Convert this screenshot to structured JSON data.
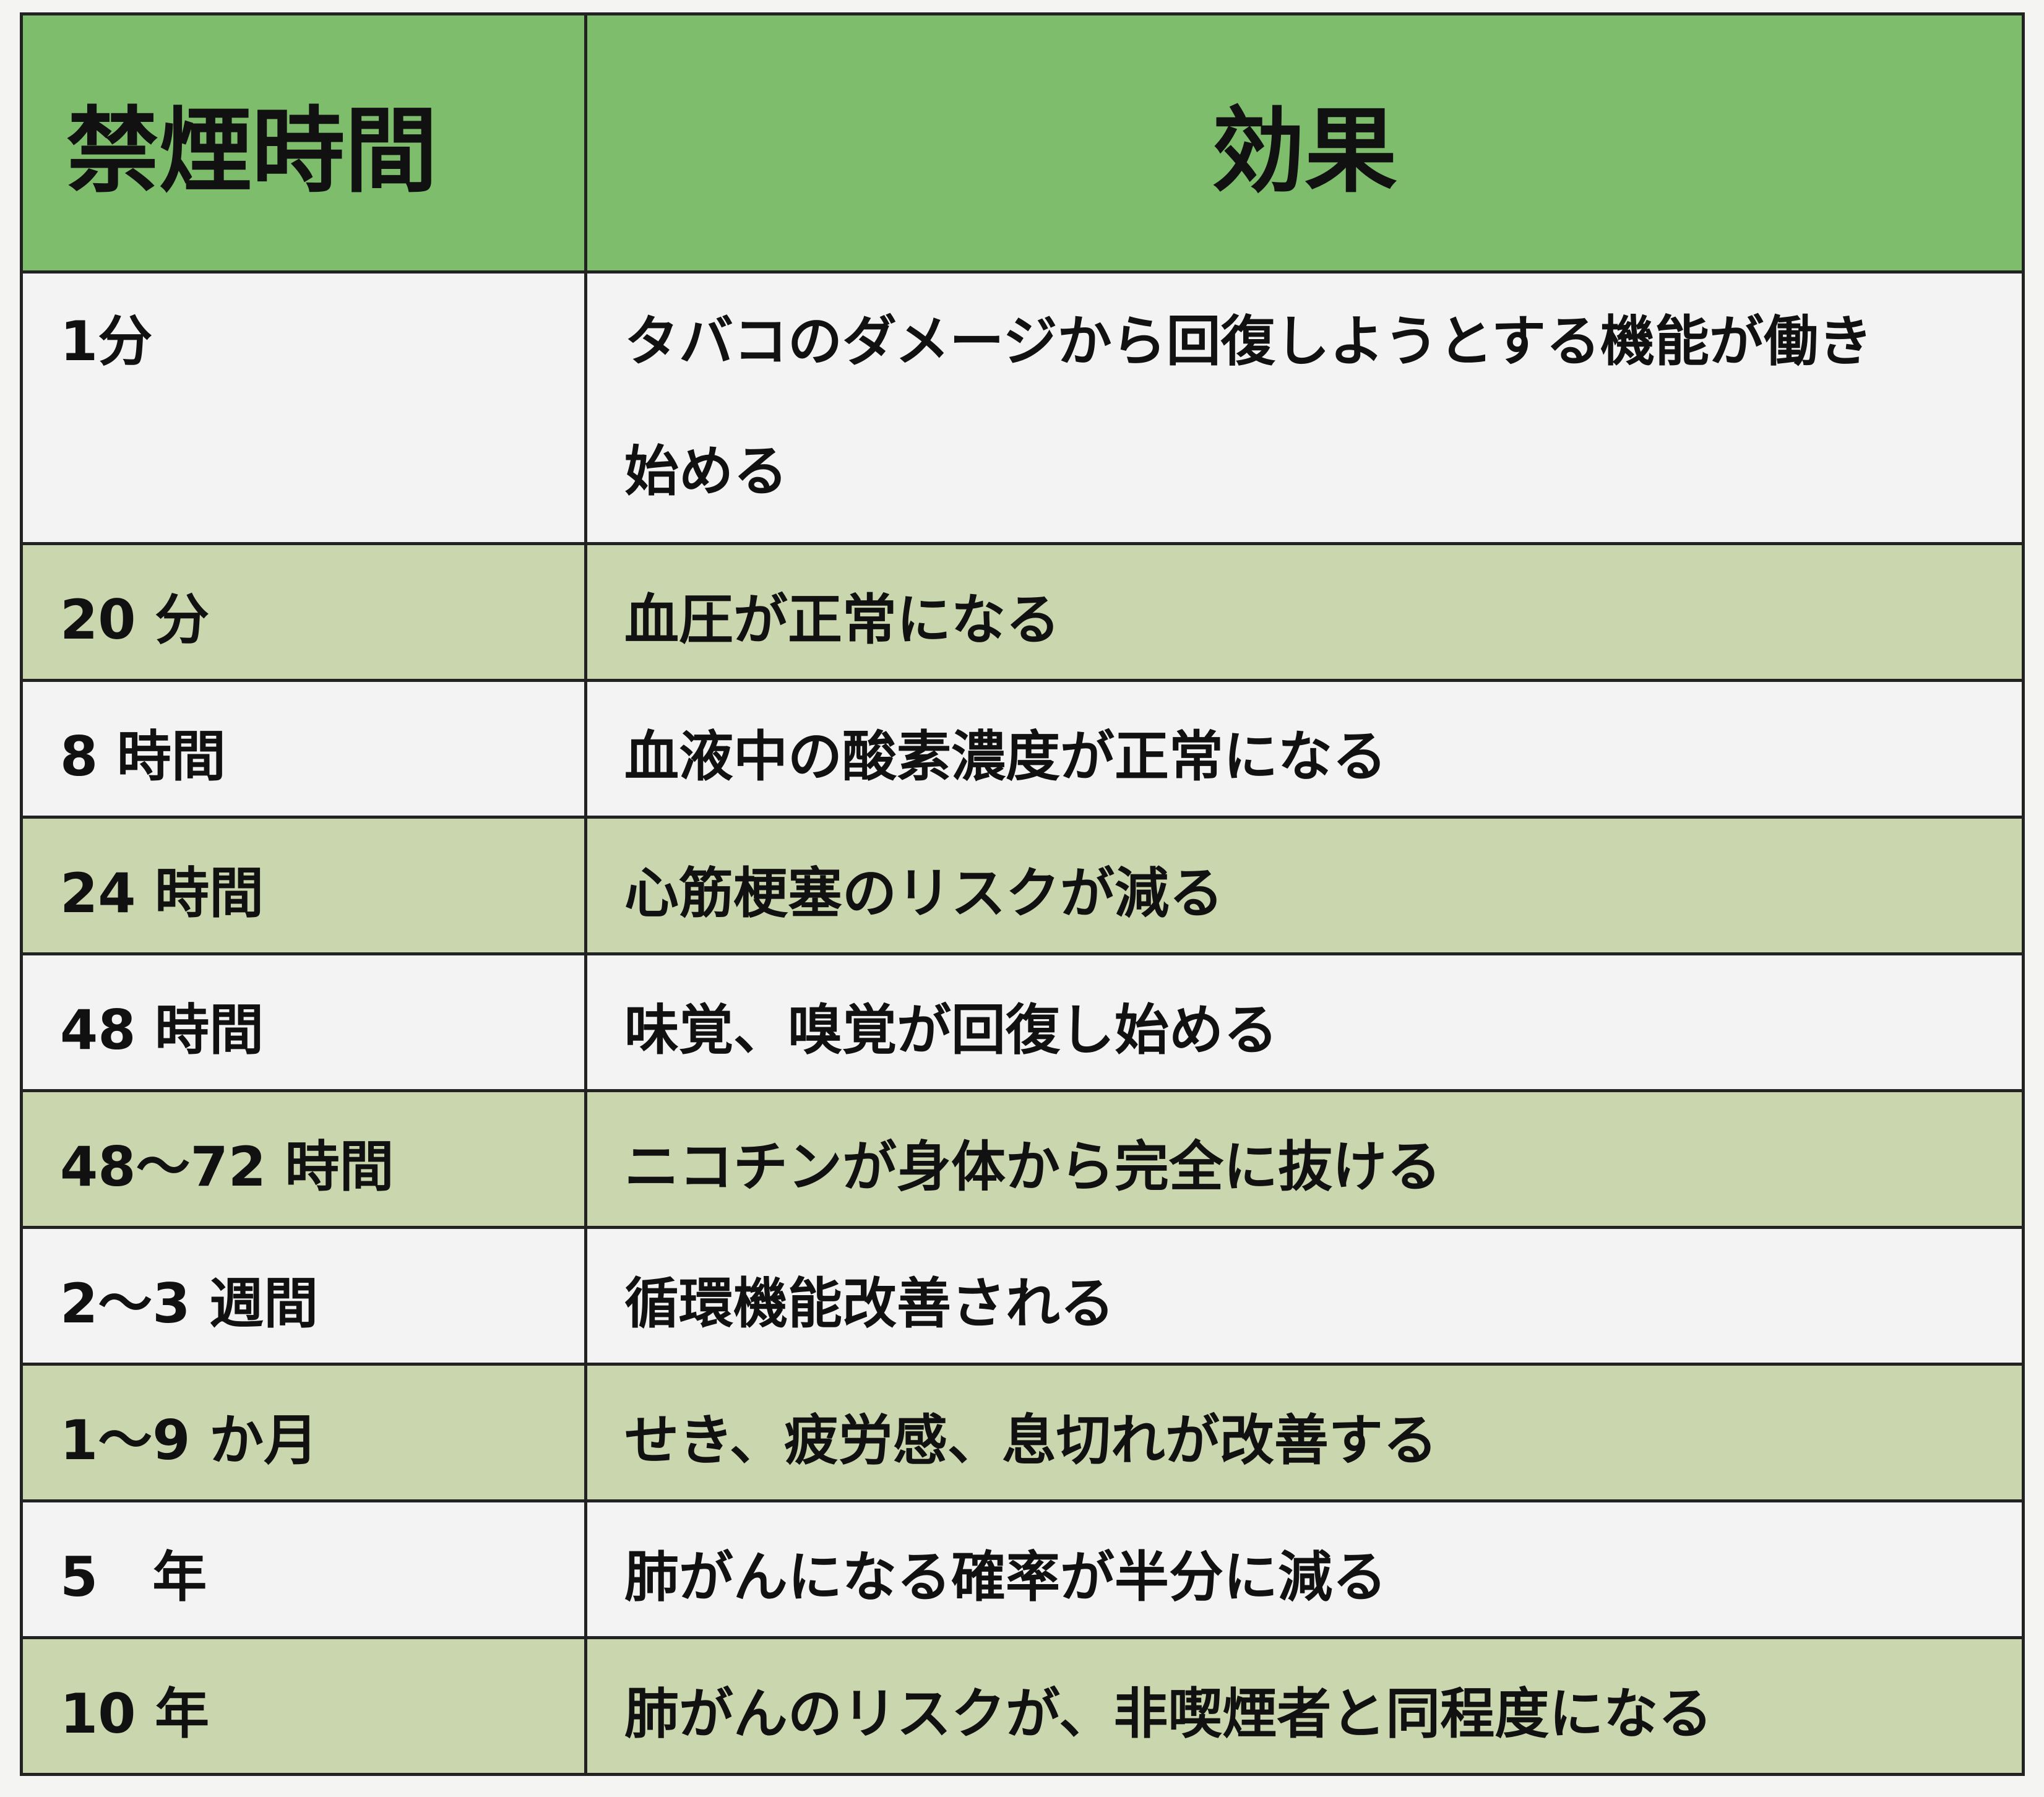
{
  "header": {
    "time": "禁煙時間",
    "effect": "効果"
  },
  "rows": [
    {
      "time": "1分",
      "effect": "タバコのダメージから回復しようとする機能が働き始める"
    },
    {
      "time": "20 分",
      "effect": "血圧が正常になる"
    },
    {
      "time": "8 時間",
      "effect": "血液中の酸素濃度が正常になる"
    },
    {
      "time": "24 時間",
      "effect": "心筋梗塞のリスクが減る"
    },
    {
      "time": "48 時間",
      "effect": "味覚、嗅覚が回復し始める"
    },
    {
      "time": "48～72 時間",
      "effect": "ニコチンが身体から完全に抜ける"
    },
    {
      "time": "2～3 週間",
      "effect": "循環機能改善される"
    },
    {
      "time": "1～9 か月",
      "effect": "せき、疲労感、息切れが改善する"
    },
    {
      "time": "5　年",
      "effect": "肺がんになる確率が半分に減る"
    },
    {
      "time": "10 年",
      "effect": "肺がんのリスクが、非喫煙者と同程度になる"
    }
  ],
  "colors": {
    "header": "#7dbd6b",
    "alt_row": "#cad6ae",
    "plain_row": "#f3f3f3"
  }
}
